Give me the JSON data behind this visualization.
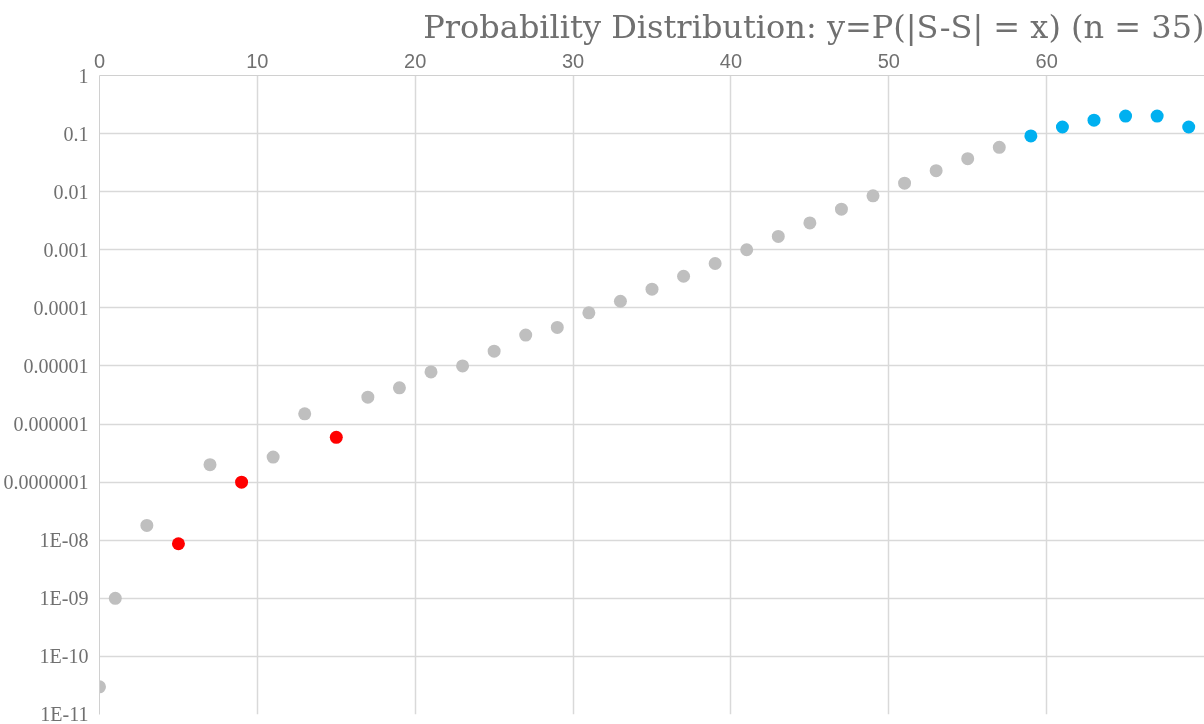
{
  "chart_data": {
    "type": "scatter",
    "title": "Probability Distribution: y=P(|S-S| = x) (n = 35)",
    "log": "y",
    "grid": true,
    "marker": "circle",
    "xlim": [
      0,
      70
    ],
    "xticks": [
      0,
      10,
      20,
      30,
      40,
      50,
      60
    ],
    "ylim": [
      1e-11,
      1
    ],
    "yticks": [
      1,
      0.1,
      0.01,
      0.001,
      0.0001,
      {
        "value": 1e-05,
        "label": "0.00001"
      },
      {
        "value": 1e-06,
        "label": "0.000001"
      },
      {
        "value": 1e-07,
        "label": "0.0000001"
      },
      {
        "value": 1e-08,
        "label": "1E-08"
      },
      {
        "value": 1e-09,
        "label": "1E-09"
      },
      {
        "value": 1e-10,
        "label": "1E-10"
      },
      {
        "value": 1e-11,
        "label": "1E-11"
      }
    ],
    "series": [
      {
        "color": "#bfbfbf",
        "x": [
          0,
          1,
          3,
          7,
          11,
          13,
          17,
          19,
          21,
          23,
          25,
          27,
          29,
          31,
          33,
          35,
          37,
          39,
          41,
          43,
          45,
          47,
          49,
          51,
          53,
          55,
          57
        ],
        "values": [
          3e-11,
          1e-09,
          1.8e-08,
          2e-07,
          2.7e-07,
          1.5e-06,
          2.9e-06,
          4.2e-06,
          7.9e-06,
          1e-05,
          1.8e-05,
          3.4e-05,
          4.6e-05,
          8.2e-05,
          0.00013,
          0.00021,
          0.00035,
          0.00058,
          0.001,
          0.0017,
          0.0029,
          0.005,
          0.0085,
          0.014,
          0.023,
          0.037,
          0.058
        ]
      },
      {
        "color": "#ff0000",
        "x": [
          5,
          9,
          15
        ],
        "values": [
          8.7e-09,
          1e-07,
          5.9e-07
        ]
      },
      {
        "color": "#00b0f0",
        "x": [
          59,
          61,
          63,
          65,
          67,
          69
        ],
        "values": [
          0.091,
          0.13,
          0.17,
          0.2,
          0.2,
          0.13
        ]
      }
    ]
  }
}
